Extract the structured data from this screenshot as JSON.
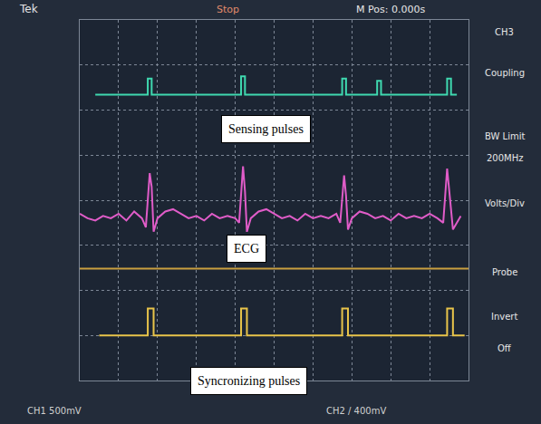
{
  "chart_data": {
    "type": "line",
    "xlim": [
      0,
      10
    ],
    "ylim": [
      0,
      8
    ],
    "xticks": [
      0,
      1,
      2,
      3,
      4,
      5,
      6,
      7,
      8,
      9,
      10
    ],
    "yticks": [
      0,
      1,
      2,
      3,
      4,
      5,
      6,
      7,
      8
    ],
    "grid": true,
    "tick_labels": false,
    "annotations": [
      "Tek",
      "Stop",
      "M Pos: 0.000s",
      "CH3",
      "Coupling",
      "BW Limit",
      "200MHz",
      "Volts/Div",
      "Probe",
      "Invert",
      "Off",
      "CH1 500mV",
      "CH2 / 400mV"
    ],
    "series": [
      {
        "name": "Sensing pulses",
        "color": "#3fd9b0",
        "x": [
          0.4,
          1.75,
          1.75,
          1.85,
          1.85,
          4.15,
          4.15,
          4.25,
          4.25,
          6.75,
          6.75,
          6.85,
          6.85,
          7.65,
          7.65,
          7.75,
          7.75,
          9.45,
          9.45,
          9.55,
          9.55,
          9.7
        ],
        "values": [
          6.34,
          6.34,
          6.7,
          6.7,
          6.34,
          6.34,
          6.75,
          6.75,
          6.34,
          6.34,
          6.7,
          6.7,
          6.34,
          6.34,
          6.65,
          6.65,
          6.34,
          6.34,
          6.7,
          6.7,
          6.34,
          6.34
        ]
      },
      {
        "name": "ECG",
        "color": "#e05cc8",
        "x": [
          0,
          0.2,
          0.4,
          0.6,
          0.8,
          1.0,
          1.2,
          1.4,
          1.6,
          1.7,
          1.8,
          1.85,
          1.9,
          2.0,
          2.2,
          2.4,
          2.6,
          2.8,
          3.0,
          3.2,
          3.4,
          3.6,
          3.8,
          4.0,
          4.1,
          4.2,
          4.25,
          4.3,
          4.4,
          4.6,
          4.8,
          5.0,
          5.2,
          5.4,
          5.6,
          5.8,
          6.0,
          6.2,
          6.4,
          6.6,
          6.7,
          6.8,
          6.85,
          6.9,
          7.0,
          7.2,
          7.4,
          7.6,
          7.8,
          8.0,
          8.2,
          8.4,
          8.6,
          8.8,
          9.0,
          9.2,
          9.35,
          9.45,
          9.5,
          9.6,
          9.8
        ],
        "values": [
          3.7,
          3.6,
          3.55,
          3.65,
          3.6,
          3.7,
          3.55,
          3.75,
          3.6,
          3.4,
          4.6,
          4.3,
          3.3,
          3.6,
          3.75,
          3.8,
          3.7,
          3.6,
          3.65,
          3.55,
          3.7,
          3.6,
          3.65,
          3.6,
          3.5,
          4.75,
          4.2,
          3.3,
          3.6,
          3.75,
          3.8,
          3.7,
          3.6,
          3.65,
          3.55,
          3.7,
          3.6,
          3.65,
          3.6,
          3.7,
          3.5,
          4.55,
          4.1,
          3.35,
          3.6,
          3.75,
          3.7,
          3.6,
          3.65,
          3.55,
          3.7,
          3.6,
          3.65,
          3.6,
          3.7,
          3.6,
          3.5,
          4.7,
          4.2,
          3.35,
          3.65
        ]
      },
      {
        "color": "#c9a040",
        "x": [
          0,
          10
        ],
        "values": [
          2.48,
          2.48
        ]
      },
      {
        "name": "Syncronizing pulses",
        "color": "#e8c44a",
        "x": [
          0.5,
          1.75,
          1.75,
          1.9,
          1.9,
          4.15,
          4.15,
          4.3,
          4.3,
          6.75,
          6.75,
          6.9,
          6.9,
          9.45,
          9.45,
          9.6,
          9.6,
          9.9
        ],
        "values": [
          1,
          1,
          1.6,
          1.6,
          1,
          1,
          1.6,
          1.6,
          1,
          1,
          1.6,
          1.6,
          1,
          1,
          1.6,
          1.6,
          1,
          1
        ]
      }
    ]
  }
}
